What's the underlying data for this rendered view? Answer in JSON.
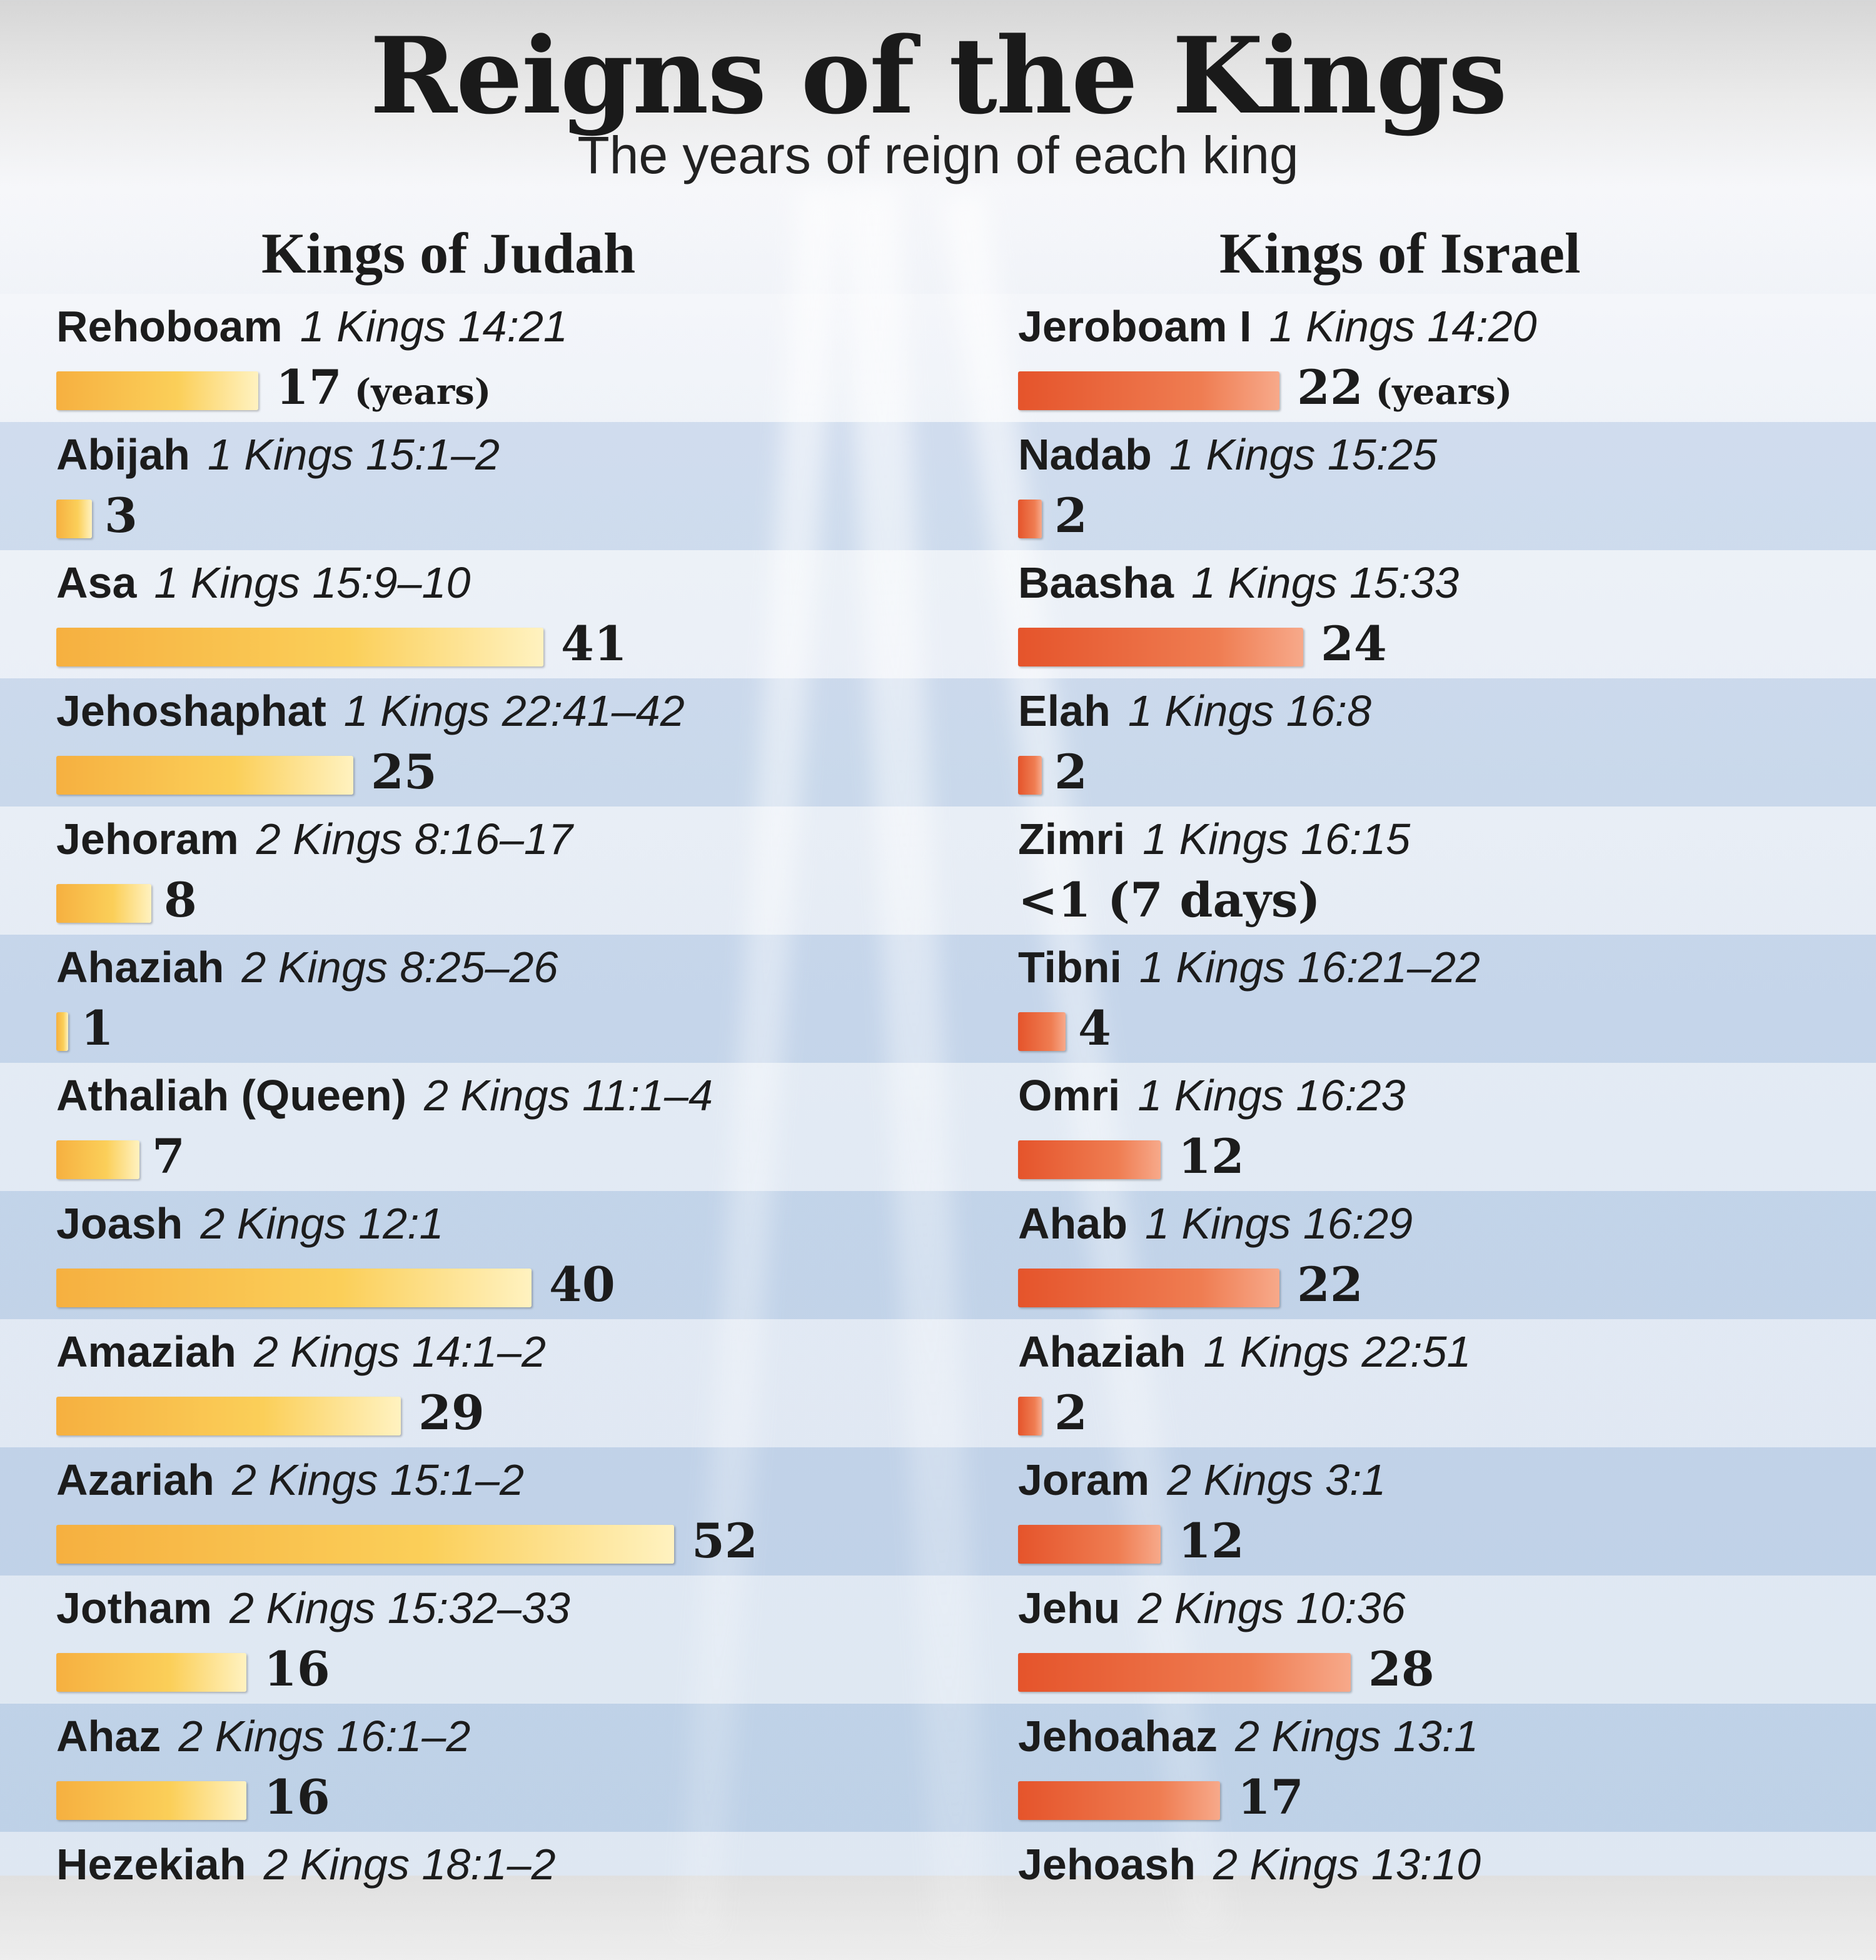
{
  "title": "Reigns of the Kings",
  "subtitle": "The years of reign of each king",
  "chart_data": [
    {
      "type": "bar",
      "orientation": "horizontal",
      "title": "Kings of Judah",
      "unit_label": "(years)",
      "entries": [
        {
          "name": "Rehoboam",
          "ref": "1 Kings 14:21",
          "value": 17,
          "label": "17"
        },
        {
          "name": "Abijah",
          "ref": "1 Kings 15:1–2",
          "value": 3,
          "label": "3"
        },
        {
          "name": "Asa",
          "ref": "1 Kings 15:9–10",
          "value": 41,
          "label": "41"
        },
        {
          "name": "Jehoshaphat",
          "ref": "1 Kings 22:41–42",
          "value": 25,
          "label": "25"
        },
        {
          "name": "Jehoram",
          "ref": "2 Kings 8:16–17",
          "value": 8,
          "label": "8"
        },
        {
          "name": "Ahaziah",
          "ref": "2 Kings 8:25–26",
          "value": 1,
          "label": "1"
        },
        {
          "name": "Athaliah (Queen)",
          "ref": "2 Kings 11:1–4",
          "value": 7,
          "label": "7"
        },
        {
          "name": "Joash",
          "ref": "2 Kings 12:1",
          "value": 40,
          "label": "40"
        },
        {
          "name": "Amaziah",
          "ref": "2 Kings 14:1–2",
          "value": 29,
          "label": "29"
        },
        {
          "name": "Azariah",
          "ref": "2 Kings 15:1–2",
          "value": 52,
          "label": "52"
        },
        {
          "name": "Jotham",
          "ref": "2 Kings 15:32–33",
          "value": 16,
          "label": "16"
        },
        {
          "name": "Ahaz",
          "ref": "2 Kings 16:1–2",
          "value": 16,
          "label": "16"
        },
        {
          "name": "Hezekiah",
          "ref": "2 Kings 18:1–2",
          "value": null,
          "label": ""
        }
      ]
    },
    {
      "type": "bar",
      "orientation": "horizontal",
      "title": "Kings of Israel",
      "unit_label": "(years)",
      "entries": [
        {
          "name": "Jeroboam I",
          "ref": "1 Kings 14:20",
          "value": 22,
          "label": "22"
        },
        {
          "name": "Nadab",
          "ref": "1 Kings 15:25",
          "value": 2,
          "label": "2"
        },
        {
          "name": "Baasha",
          "ref": "1 Kings 15:33",
          "value": 24,
          "label": "24"
        },
        {
          "name": "Elah",
          "ref": "1 Kings 16:8",
          "value": 2,
          "label": "2"
        },
        {
          "name": "Zimri",
          "ref": "1 Kings 16:15",
          "value": 0,
          "label": "<1 (7 days)"
        },
        {
          "name": "Tibni",
          "ref": "1 Kings 16:21–22",
          "value": 4,
          "label": "4"
        },
        {
          "name": "Omri",
          "ref": "1 Kings 16:23",
          "value": 12,
          "label": "12"
        },
        {
          "name": "Ahab",
          "ref": "1 Kings 16:29",
          "value": 22,
          "label": "22"
        },
        {
          "name": "Ahaziah",
          "ref": "1 Kings 22:51",
          "value": 2,
          "label": "2"
        },
        {
          "name": "Joram",
          "ref": "2 Kings 3:1",
          "value": 12,
          "label": "12"
        },
        {
          "name": "Jehu",
          "ref": "2 Kings 10:36",
          "value": 28,
          "label": "28"
        },
        {
          "name": "Jehoahaz",
          "ref": "2 Kings 13:1",
          "value": 17,
          "label": "17"
        },
        {
          "name": "Jehoash",
          "ref": "2 Kings 13:10",
          "value": null,
          "label": ""
        }
      ]
    }
  ],
  "colors": {
    "judah_bar": "#f9c24e",
    "israel_bar": "#e8603a"
  }
}
